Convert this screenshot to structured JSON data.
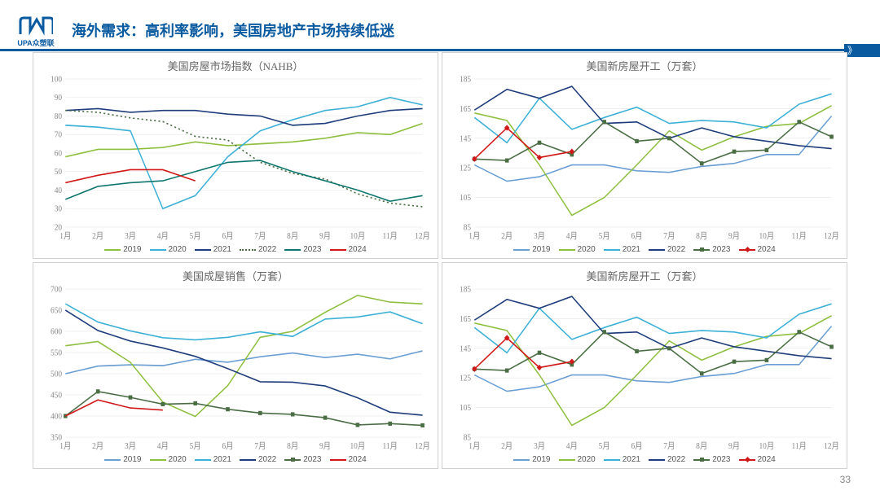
{
  "page": {
    "title": "海外需求：高利率影响，美国房地产市场持续低迷",
    "logo_text": "UPA众塑联",
    "page_number": "33"
  },
  "categories": [
    "1月",
    "2月",
    "3月",
    "4月",
    "5月",
    "6月",
    "7月",
    "8月",
    "9月",
    "10月",
    "11月",
    "12月"
  ],
  "colors": {
    "2019": "#8fbf3f",
    "2020": "#3db0d6",
    "2021": "#1f3d7a",
    "2022": "#4a6d44",
    "2023": "#0f766e",
    "2024": "#d01818",
    "grid": "#e4e4e4",
    "axis_text": "#888888",
    "title_text": "#666666"
  },
  "charts": [
    {
      "id": "nahb",
      "title": "美国房屋市场指数（NAHB）",
      "ylim": [
        20,
        100
      ],
      "ytick_step": 10,
      "series": [
        {
          "name": "2019",
          "color": "#8fbf3f",
          "style": "solid",
          "marker": null,
          "data": [
            58,
            62,
            62,
            63,
            66,
            64,
            65,
            66,
            68,
            71,
            70,
            76
          ]
        },
        {
          "name": "2020",
          "color": "#3db0d6",
          "style": "solid",
          "marker": null,
          "data": [
            75,
            74,
            72,
            30,
            37,
            58,
            72,
            78,
            83,
            85,
            90,
            86
          ]
        },
        {
          "name": "2021",
          "color": "#1f3d7a",
          "style": "solid",
          "marker": null,
          "data": [
            83,
            84,
            82,
            83,
            83,
            81,
            80,
            75,
            76,
            80,
            83,
            84
          ]
        },
        {
          "name": "2022",
          "color": "#4a6d44",
          "style": "dotted",
          "marker": null,
          "data": [
            83,
            82,
            79,
            77,
            69,
            67,
            55,
            49,
            46,
            38,
            33,
            31
          ]
        },
        {
          "name": "2023",
          "color": "#0f766e",
          "style": "solid",
          "marker": null,
          "data": [
            35,
            42,
            44,
            45,
            50,
            55,
            56,
            50,
            45,
            40,
            34,
            37
          ]
        },
        {
          "name": "2024",
          "color": "#d01818",
          "style": "solid",
          "marker": null,
          "data": [
            44,
            48,
            51,
            51,
            45,
            null,
            null,
            null,
            null,
            null,
            null,
            null
          ]
        }
      ],
      "legend_marker": null
    },
    {
      "id": "starts1",
      "title": "美国新房屋开工（万套）",
      "ylim": [
        85,
        185
      ],
      "ytick_step": 20,
      "series": [
        {
          "name": "2019",
          "color": "#6b9fd4",
          "style": "solid",
          "marker": null,
          "data": [
            127,
            116,
            119,
            127,
            127,
            123,
            122,
            126,
            128,
            134,
            134,
            160
          ]
        },
        {
          "name": "2020",
          "color": "#8fbf3f",
          "style": "solid",
          "marker": null,
          "data": [
            162,
            157,
            127,
            93,
            105,
            127,
            150,
            137,
            146,
            153,
            155,
            167
          ]
        },
        {
          "name": "2021",
          "color": "#3db0d6",
          "style": "solid",
          "marker": null,
          "data": [
            159,
            142,
            172,
            151,
            159,
            166,
            155,
            157,
            156,
            152,
            168,
            175
          ]
        },
        {
          "name": "2022",
          "color": "#1f3d7a",
          "style": "solid",
          "marker": null,
          "data": [
            164,
            178,
            172,
            180,
            155,
            156,
            145,
            152,
            146,
            143,
            140,
            138
          ]
        },
        {
          "name": "2023",
          "color": "#4a6d44",
          "style": "solid",
          "marker": "square",
          "data": [
            131,
            130,
            142,
            134,
            156,
            143,
            145,
            128,
            136,
            137,
            156,
            146
          ]
        },
        {
          "name": "2024",
          "color": "#d01818",
          "style": "solid",
          "marker": "diamond",
          "data": [
            131,
            152,
            132,
            136,
            null,
            null,
            null,
            null,
            null,
            null,
            null,
            null
          ]
        }
      ],
      "legend_marker": "square-diamond"
    },
    {
      "id": "existing",
      "title": "美国成屋销售（万套）",
      "ylim": [
        350,
        700
      ],
      "ytick_step": 50,
      "series": [
        {
          "name": "2019",
          "color": "#6b9fd4",
          "style": "solid",
          "marker": null,
          "data": [
            500,
            518,
            521,
            519,
            534,
            527,
            540,
            549,
            538,
            546,
            535,
            554
          ]
        },
        {
          "name": "2020",
          "color": "#8fbf3f",
          "style": "solid",
          "marker": null,
          "data": [
            566,
            576,
            527,
            433,
            399,
            472,
            586,
            600,
            645,
            685,
            669,
            665
          ]
        },
        {
          "name": "2021",
          "color": "#3db0d6",
          "style": "solid",
          "marker": null,
          "data": [
            665,
            622,
            601,
            585,
            580,
            586,
            599,
            588,
            629,
            634,
            646,
            618
          ]
        },
        {
          "name": "2022",
          "color": "#1f3d7a",
          "style": "solid",
          "marker": null,
          "data": [
            650,
            602,
            577,
            561,
            541,
            512,
            481,
            480,
            471,
            443,
            409,
            402
          ]
        },
        {
          "name": "2023",
          "color": "#4a6d44",
          "style": "solid",
          "marker": "square",
          "data": [
            400,
            458,
            444,
            428,
            430,
            416,
            407,
            404,
            396,
            379,
            382,
            378
          ]
        },
        {
          "name": "2024",
          "color": "#d01818",
          "style": "solid",
          "marker": null,
          "data": [
            400,
            438,
            419,
            414,
            null,
            null,
            null,
            null,
            null,
            null,
            null,
            null
          ]
        }
      ],
      "legend_marker": "square"
    },
    {
      "id": "starts2",
      "title": "美国新房屋开工（万套）",
      "ylim": [
        85,
        185
      ],
      "ytick_step": 20,
      "series": [
        {
          "name": "2019",
          "color": "#6b9fd4",
          "style": "solid",
          "marker": null,
          "data": [
            127,
            116,
            119,
            127,
            127,
            123,
            122,
            126,
            128,
            134,
            134,
            160
          ]
        },
        {
          "name": "2020",
          "color": "#8fbf3f",
          "style": "solid",
          "marker": null,
          "data": [
            162,
            157,
            127,
            93,
            105,
            127,
            150,
            137,
            146,
            153,
            155,
            167
          ]
        },
        {
          "name": "2021",
          "color": "#3db0d6",
          "style": "solid",
          "marker": null,
          "data": [
            159,
            142,
            172,
            151,
            159,
            166,
            155,
            157,
            156,
            152,
            168,
            175
          ]
        },
        {
          "name": "2022",
          "color": "#1f3d7a",
          "style": "solid",
          "marker": null,
          "data": [
            164,
            178,
            172,
            180,
            155,
            156,
            145,
            152,
            146,
            143,
            140,
            138
          ]
        },
        {
          "name": "2023",
          "color": "#4a6d44",
          "style": "solid",
          "marker": "square",
          "data": [
            131,
            130,
            142,
            134,
            156,
            143,
            145,
            128,
            136,
            137,
            156,
            146
          ]
        },
        {
          "name": "2024",
          "color": "#d01818",
          "style": "solid",
          "marker": "diamond",
          "data": [
            131,
            152,
            132,
            136,
            null,
            null,
            null,
            null,
            null,
            null,
            null,
            null
          ]
        }
      ],
      "legend_marker": "square-diamond"
    }
  ]
}
